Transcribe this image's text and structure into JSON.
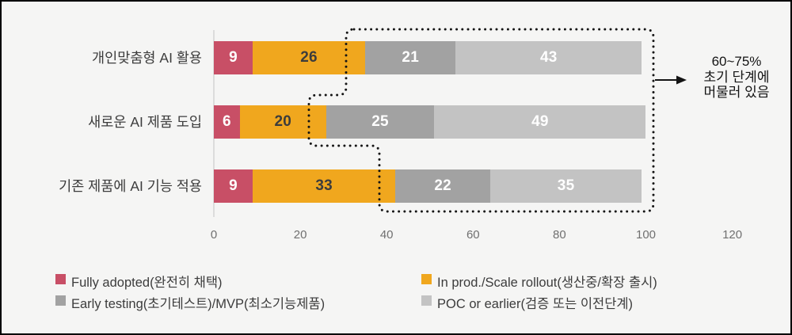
{
  "chart_data": {
    "type": "bar",
    "orientation": "horizontal",
    "stacked": true,
    "title": "",
    "categories": [
      "개인맞춤형 AI 활용",
      "새로운 AI 제품 도입",
      "기존 제품에 AI 기능 적용"
    ],
    "series": [
      {
        "name": "Fully adopted(완전히 채택)",
        "color": "#C84F66",
        "label_color": "#FFFFFF",
        "values": [
          9,
          6,
          9
        ]
      },
      {
        "name": "In prod./Scale rollout(생산중/확장 출시)",
        "color": "#F0A71E",
        "label_color": "#3C3C3C",
        "values": [
          26,
          20,
          33
        ]
      },
      {
        "name": "Early testing(초기테스트)/MVP(최소기능제품)",
        "color": "#A2A2A2",
        "label_color": "#FFFFFF",
        "values": [
          21,
          25,
          22
        ]
      },
      {
        "name": "POC or earlier(검증 또는 이전단계)",
        "color": "#C3C3C3",
        "label_color": "#FFFFFF",
        "values": [
          43,
          49,
          35
        ]
      }
    ],
    "x_ticks": [
      0,
      20,
      40,
      60,
      80,
      100,
      120
    ],
    "xlim": [
      0,
      120
    ],
    "grid": false,
    "legend_position": "bottom",
    "annotation": {
      "text": "60~75%\n초기 단계에\n머물러 있음"
    }
  }
}
